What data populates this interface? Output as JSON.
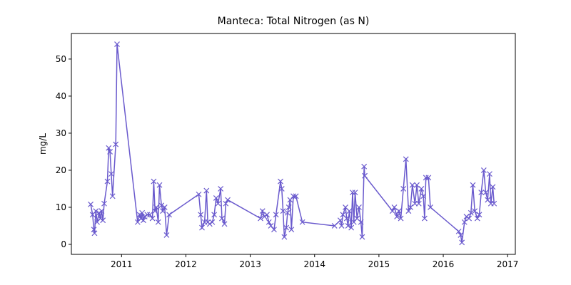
{
  "chart_data": {
    "type": "line",
    "title": "Manteca: Total Nitrogen (as N)",
    "y_label": "mg/L",
    "color": "#6a5acd",
    "marker": "x",
    "x": [
      2010.52,
      2010.55,
      2010.57,
      2010.58,
      2010.6,
      2010.62,
      2010.65,
      2010.67,
      2010.69,
      2010.71,
      2010.73,
      2010.78,
      2010.8,
      2010.82,
      2010.84,
      2010.86,
      2010.91,
      2010.93,
      2011.25,
      2011.28,
      2011.3,
      2011.32,
      2011.34,
      2011.36,
      2011.4,
      2011.44,
      2011.48,
      2011.5,
      2011.52,
      2011.54,
      2011.57,
      2011.59,
      2011.62,
      2011.64,
      2011.67,
      2011.7,
      2011.74,
      2012.2,
      2012.23,
      2012.25,
      2012.29,
      2012.32,
      2012.34,
      2012.37,
      2012.41,
      2012.44,
      2012.47,
      2012.5,
      2012.54,
      2012.56,
      2012.6,
      2012.62,
      2012.65,
      2013.16,
      2013.19,
      2013.22,
      2013.26,
      2013.29,
      2013.32,
      2013.37,
      2013.4,
      2013.47,
      2013.49,
      2013.51,
      2013.53,
      2013.56,
      2013.58,
      2013.6,
      2013.62,
      2013.64,
      2013.67,
      2013.71,
      2013.81,
      2014.31,
      2014.4,
      2014.42,
      2014.44,
      2014.48,
      2014.5,
      2014.52,
      2014.54,
      2014.57,
      2014.59,
      2014.61,
      2014.63,
      2014.66,
      2014.69,
      2014.72,
      2014.74,
      2014.77,
      2014.78,
      2015.21,
      2015.24,
      2015.28,
      2015.31,
      2015.34,
      2015.38,
      2015.42,
      2015.46,
      2015.49,
      2015.52,
      2015.56,
      2015.59,
      2015.62,
      2015.66,
      2015.69,
      2015.71,
      2015.73,
      2015.77,
      2015.8,
      2016.24,
      2016.27,
      2016.29,
      2016.33,
      2016.36,
      2016.4,
      2016.43,
      2016.46,
      2016.49,
      2016.53,
      2016.56,
      2016.59,
      2016.63,
      2016.66,
      2016.69,
      2016.72,
      2016.74,
      2016.77,
      2016.79
    ],
    "values": [
      10.8,
      8,
      4,
      3,
      9,
      6,
      8.5,
      7,
      9,
      6.5,
      11,
      17,
      26,
      25,
      19,
      13,
      27,
      54,
      6,
      8,
      7,
      8.5,
      6.5,
      7.5,
      8,
      8,
      7,
      17,
      9,
      10,
      6,
      16,
      10.5,
      9,
      10,
      2.5,
      8,
      13.5,
      8,
      4.5,
      6,
      14.5,
      6,
      5.5,
      6,
      8,
      12.5,
      11,
      15,
      7,
      5.5,
      11,
      12,
      7,
      9,
      7.5,
      8,
      6,
      5,
      4,
      8,
      17,
      15,
      9,
      2,
      4.5,
      8.5,
      10,
      12,
      4,
      13,
      13,
      6,
      5,
      6.5,
      5,
      8,
      10,
      7,
      5,
      9,
      4.5,
      14,
      6,
      14,
      7,
      10,
      6,
      2,
      21,
      18.5,
      9,
      10,
      7.5,
      9,
      7,
      15,
      23,
      9,
      10,
      16,
      11,
      16,
      11,
      15,
      13,
      7,
      18,
      18,
      10,
      3.5,
      2.5,
      0.5,
      6,
      7.5,
      7,
      8.5,
      16,
      9,
      7,
      8,
      14,
      20,
      14,
      12,
      19,
      11,
      15.5,
      11
    ],
    "xlim": [
      2010.22,
      2017.12
    ],
    "xticks": [
      2011,
      2012,
      2013,
      2014,
      2015,
      2016,
      2017
    ],
    "ylim": [
      -2.7,
      56.9
    ],
    "yticks": [
      0,
      10,
      20,
      30,
      40,
      50
    ]
  }
}
